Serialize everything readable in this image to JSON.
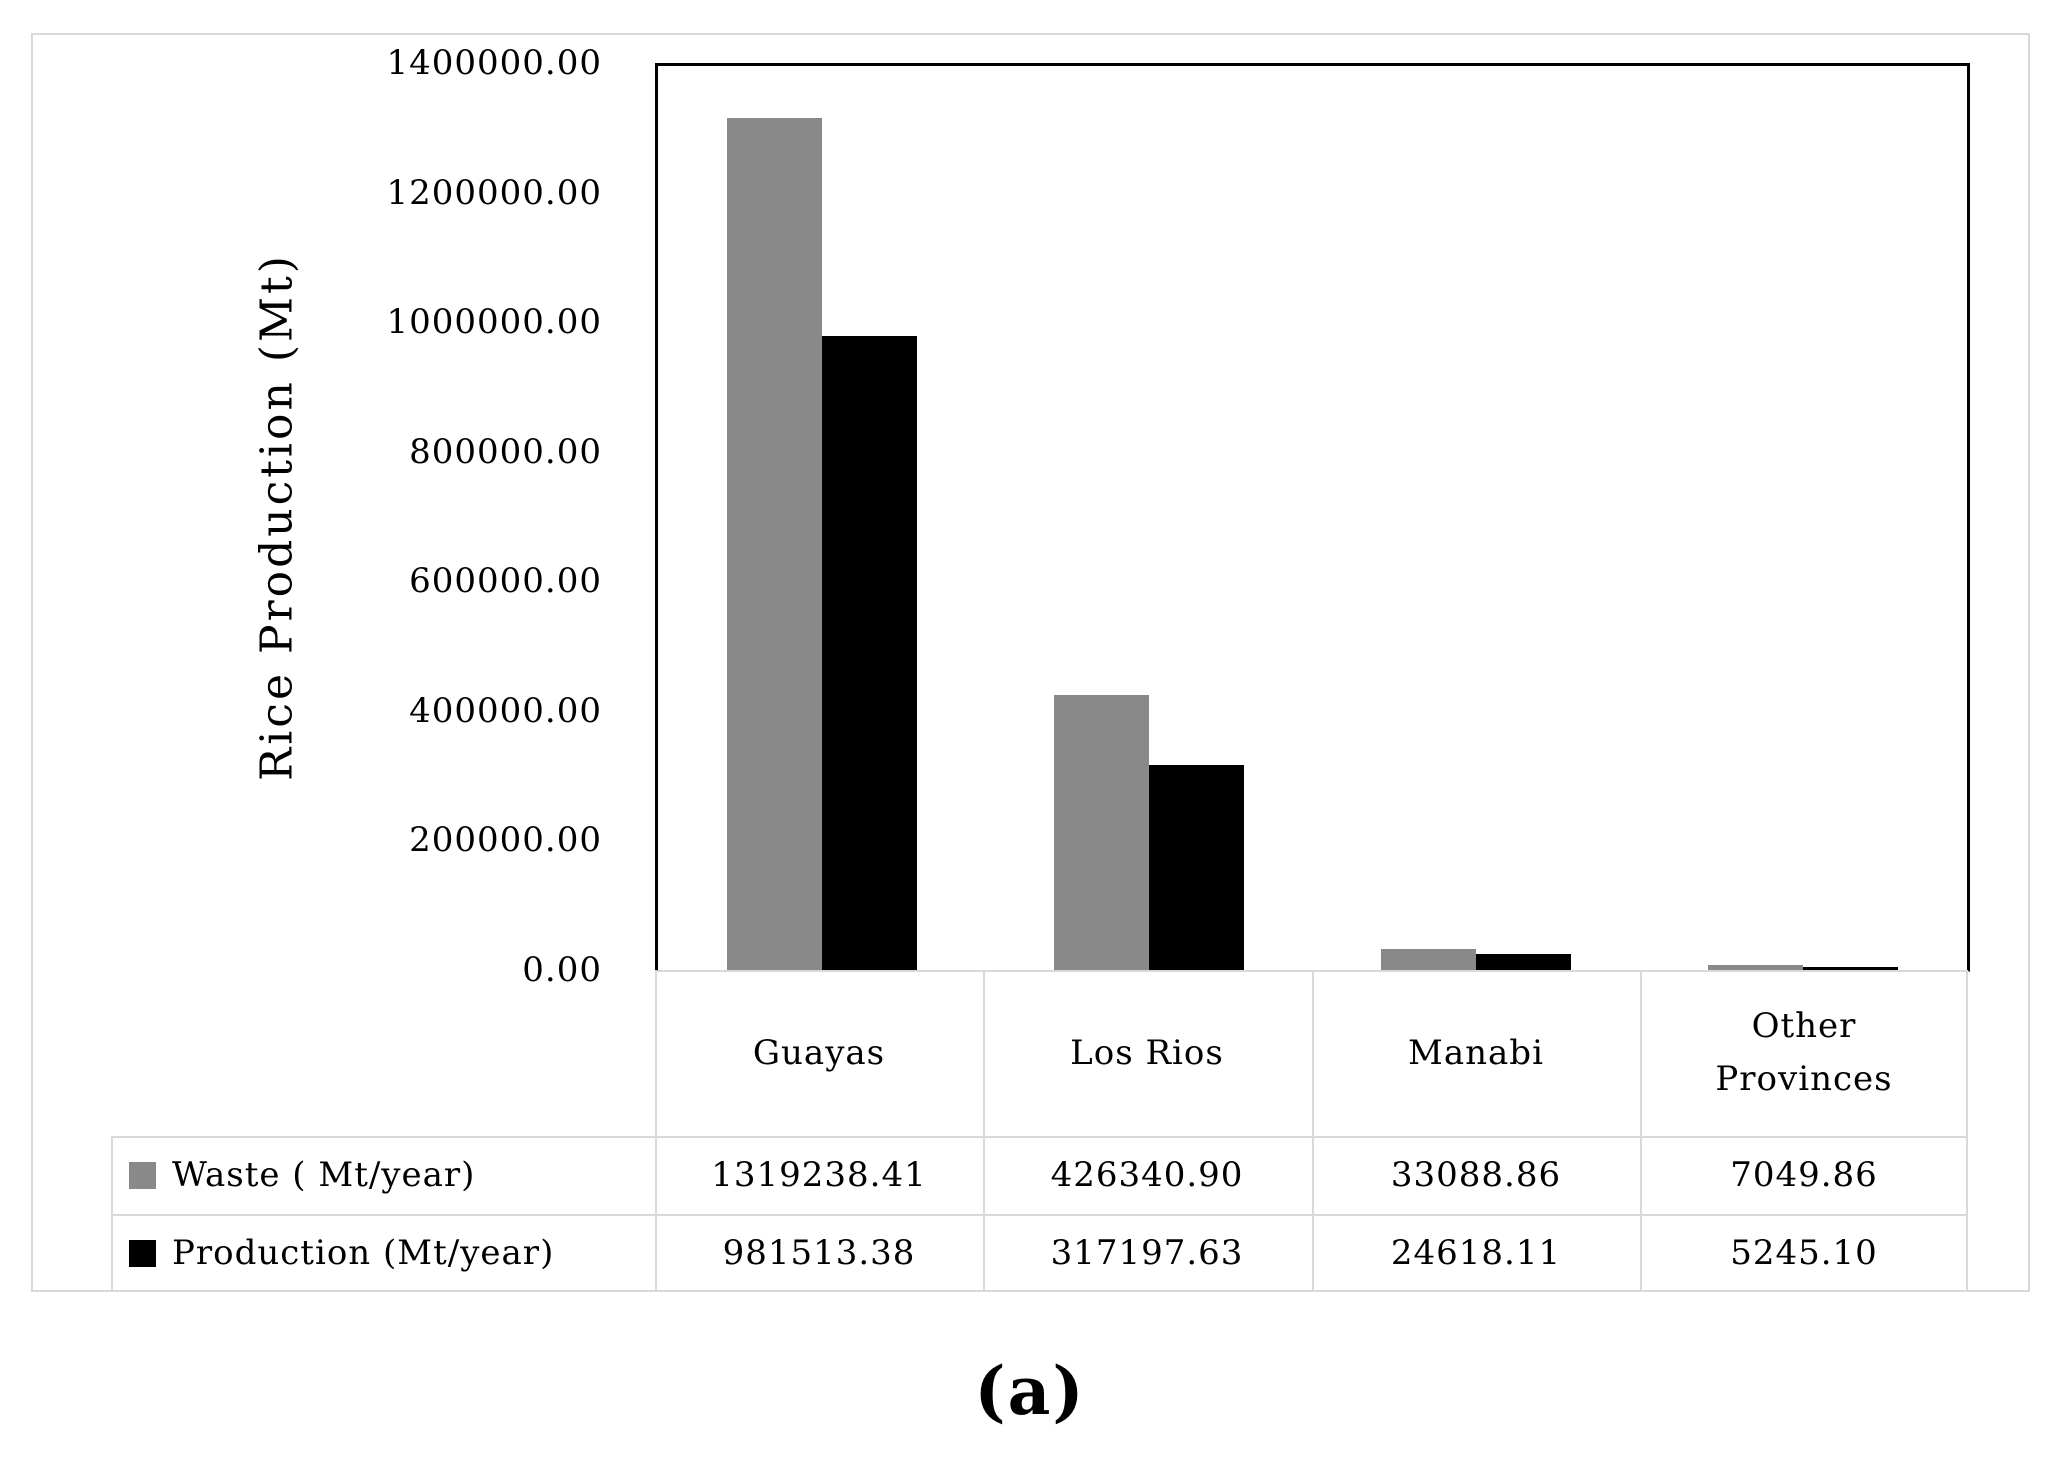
{
  "chart_data": {
    "type": "bar",
    "title": "",
    "ylabel": "Rice Production (Mt)",
    "xlabel": "",
    "categories": [
      "Guayas",
      "Los Rios",
      "Manabi",
      "Other Provinces"
    ],
    "series": [
      {
        "name": "Waste ( Mt/year)",
        "color": "#898989",
        "values": [
          1319238.41,
          426340.9,
          33088.86,
          7049.86
        ]
      },
      {
        "name": "Production (Mt/year)",
        "color": "#000000",
        "values": [
          981513.38,
          317197.63,
          24618.11,
          5245.1
        ]
      }
    ],
    "ylim": [
      0,
      1400000
    ],
    "ytick_step": 200000,
    "yticks": [
      "0.00",
      "200000.00",
      "400000.00",
      "600000.00",
      "800000.00",
      "1000000.00",
      "1200000.00",
      "1400000.00"
    ],
    "grid": false,
    "legend_position": "table-rows-left-of-data-table",
    "value_decimals": 2
  },
  "caption": "(a)",
  "colors": {
    "waste_bar": "#898989",
    "production_bar": "#000000",
    "plot_border": "#000000",
    "table_border": "#d9d9d9",
    "figure_border": "#d9d9d9",
    "background": "#ffffff"
  }
}
